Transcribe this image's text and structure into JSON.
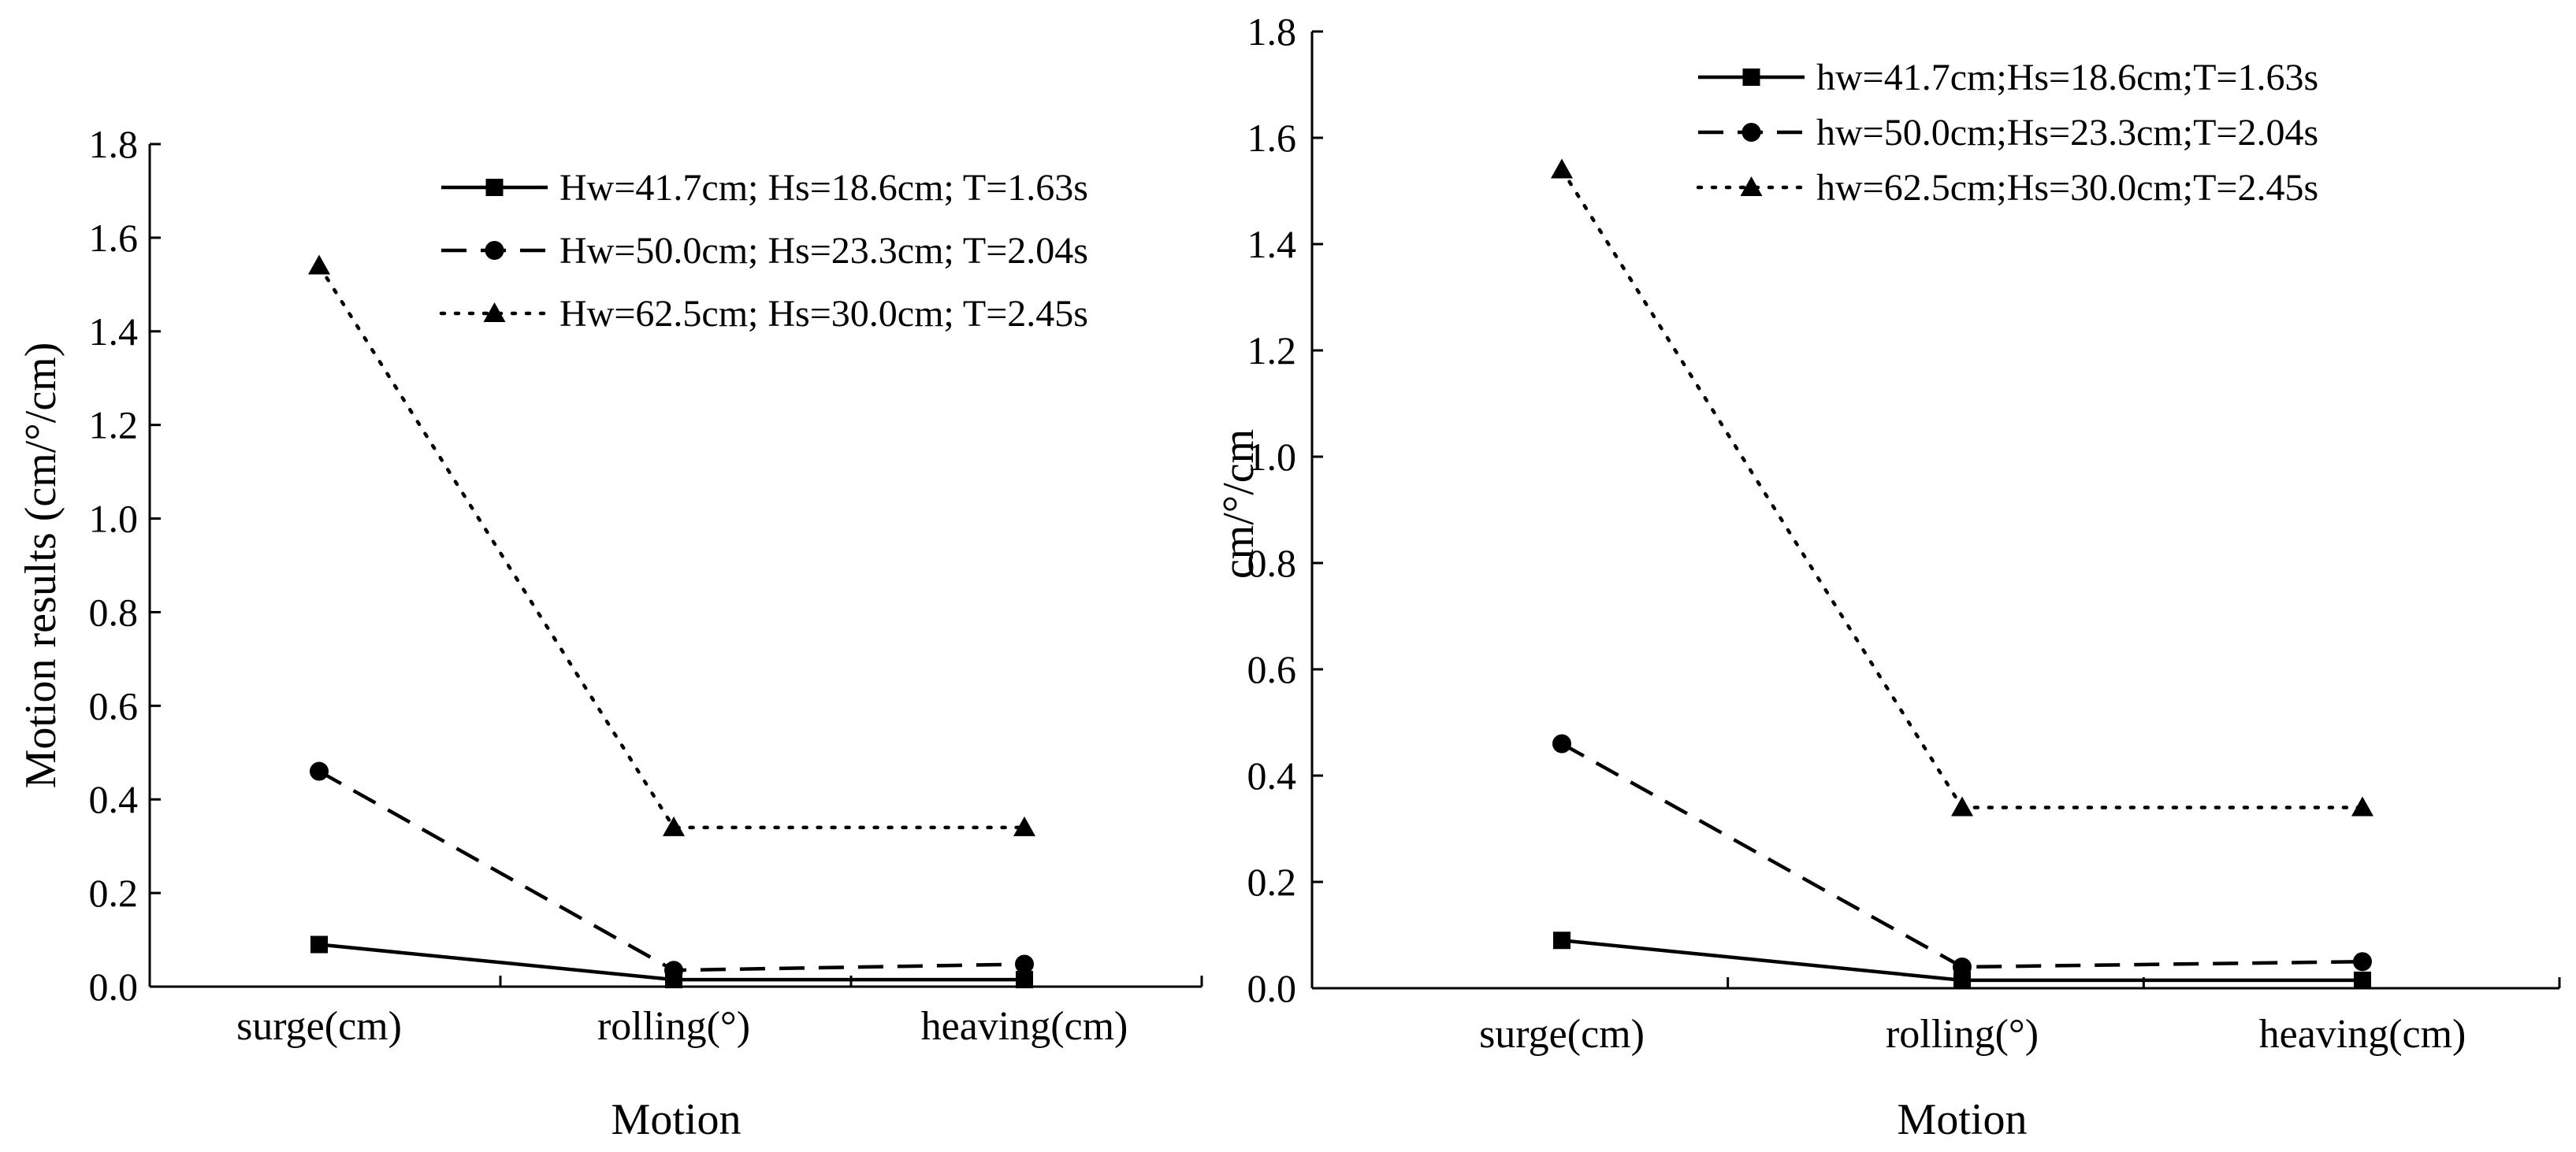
{
  "chart_data": [
    {
      "type": "line",
      "title": "",
      "xlabel": "Motion",
      "ylabel": "Motion results (cm/°/cm)",
      "categories": [
        "surge(cm)",
        "rolling(°)",
        "heaving(cm)"
      ],
      "ylim": [
        0,
        1.8
      ],
      "yticks": [
        "0.0",
        "0.2",
        "0.4",
        "0.6",
        "0.8",
        "1.0",
        "1.2",
        "1.4",
        "1.6",
        "1.8"
      ],
      "legend_position": "top-right",
      "grid": false,
      "series": [
        {
          "name": "Hw=41.7cm; Hs=18.6cm; T=1.63s",
          "values": [
            0.09,
            0.015,
            0.015
          ],
          "line_style": "solid",
          "marker": "square"
        },
        {
          "name": "Hw=50.0cm; Hs=23.3cm; T=2.04s",
          "values": [
            0.46,
            0.035,
            0.048
          ],
          "line_style": "dashed",
          "marker": "circle"
        },
        {
          "name": "Hw=62.5cm; Hs=30.0cm; T=2.45s",
          "values": [
            1.54,
            0.34,
            0.34
          ],
          "line_style": "dotted",
          "marker": "triangle"
        }
      ]
    },
    {
      "type": "line",
      "title": "",
      "xlabel": "Motion",
      "ylabel": "cm/°/cm",
      "categories": [
        "surge(cm)",
        "rolling(°)",
        "heaving(cm)"
      ],
      "ylim": [
        0,
        1.8
      ],
      "yticks": [
        "0.0",
        "0.2",
        "0.4",
        "0.6",
        "0.8",
        "1.0",
        "1.2",
        "1.4",
        "1.6",
        "1.8"
      ],
      "legend_position": "top-right",
      "grid": false,
      "series": [
        {
          "name": "hw=41.7cm;Hs=18.6cm;T=1.63s",
          "values": [
            0.09,
            0.015,
            0.015
          ],
          "line_style": "solid",
          "marker": "square"
        },
        {
          "name": "hw=50.0cm;Hs=23.3cm;T=2.04s",
          "values": [
            0.46,
            0.04,
            0.05
          ],
          "line_style": "dashed",
          "marker": "circle"
        },
        {
          "name": "hw=62.5cm;Hs=30.0cm;T=2.45s",
          "values": [
            1.54,
            0.34,
            0.34
          ],
          "line_style": "dotted",
          "marker": "triangle"
        }
      ]
    }
  ],
  "colors": {
    "line": "#000000",
    "background": "#ffffff"
  }
}
